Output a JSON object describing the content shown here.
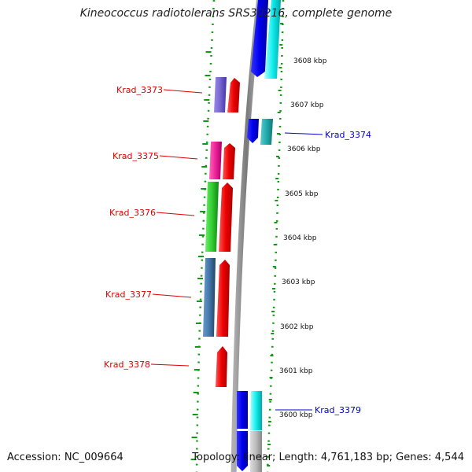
{
  "title": "Kineococcus radiotolerans SRS30216, complete genome",
  "accession": "Accession: NC_009664",
  "summary": "Topology: linear; Length: 4,761,183 bp; Genes: 4,544",
  "colors": {
    "reverse_label": "#dd0000",
    "forward_label": "#0000cc",
    "backbone": "#808080",
    "guide_dots": "#119911"
  },
  "scale_ticks": [
    "3608 kbp",
    "3607 kbp",
    "3606 kbp",
    "3605 kbp",
    "3604 kbp",
    "3603 kbp",
    "3602 kbp",
    "3601 kbp",
    "3600 kbp"
  ],
  "gene_labels": [
    {
      "id": "Krad_3373",
      "strand": "reverse"
    },
    {
      "id": "Krad_3374",
      "strand": "forward"
    },
    {
      "id": "Krad_3375",
      "strand": "reverse"
    },
    {
      "id": "Krad_3376",
      "strand": "reverse"
    },
    {
      "id": "Krad_3377",
      "strand": "reverse"
    },
    {
      "id": "Krad_3378",
      "strand": "reverse"
    },
    {
      "id": "Krad_3379",
      "strand": "forward"
    }
  ]
}
